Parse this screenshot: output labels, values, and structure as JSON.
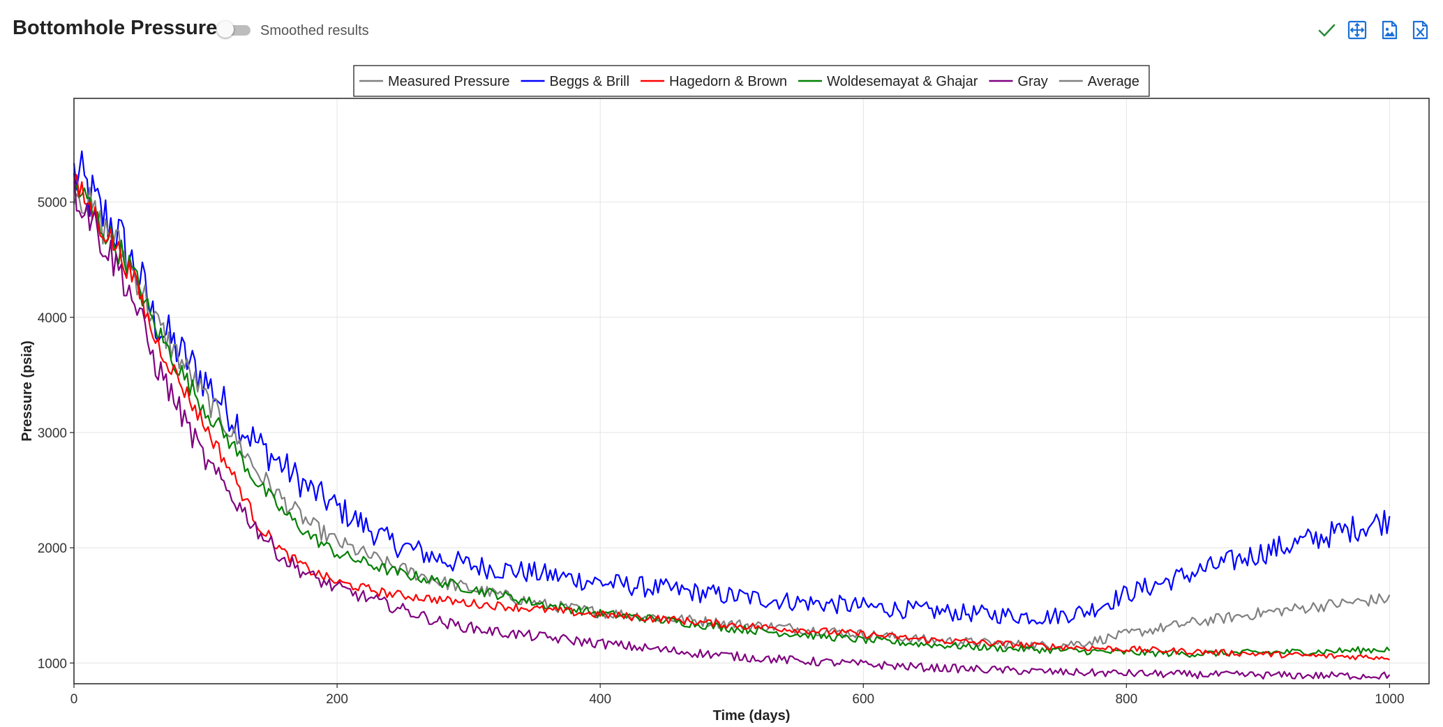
{
  "header": {
    "title": "Bottomhole Pressure",
    "toggle_label": "Smoothed results",
    "toggle_on": false,
    "icons": [
      {
        "name": "checkmark-icon",
        "color": "#2e8b3a"
      },
      {
        "name": "fit-view-icon",
        "color": "#1a6fd6"
      },
      {
        "name": "image-export-icon",
        "color": "#1a6fd6"
      },
      {
        "name": "excel-export-icon",
        "color": "#1a6fd6"
      }
    ]
  },
  "chart_data": {
    "type": "line",
    "xlabel": "Time (days)",
    "ylabel": "Pressure (psia)",
    "xlim": [
      0,
      1030
    ],
    "ylim": [
      820,
      5900
    ],
    "xticks": [
      0,
      200,
      400,
      600,
      800,
      1000
    ],
    "yticks": [
      1000,
      2000,
      3000,
      4000,
      5000
    ],
    "grid": true,
    "legend_position": "top-center",
    "series": [
      {
        "name": "Measured Pressure",
        "color": "#808080",
        "hidden": true,
        "points": []
      },
      {
        "name": "Beggs & Brill",
        "color": "#0000ff",
        "noise": 110,
        "points": [
          [
            0,
            5250
          ],
          [
            10,
            5100
          ],
          [
            20,
            4900
          ],
          [
            30,
            4800
          ],
          [
            40,
            4550
          ],
          [
            50,
            4350
          ],
          [
            60,
            4000
          ],
          [
            80,
            3700
          ],
          [
            100,
            3450
          ],
          [
            120,
            3150
          ],
          [
            140,
            2900
          ],
          [
            160,
            2700
          ],
          [
            180,
            2500
          ],
          [
            200,
            2350
          ],
          [
            240,
            2050
          ],
          [
            280,
            1900
          ],
          [
            300,
            1850
          ],
          [
            350,
            1780
          ],
          [
            400,
            1700
          ],
          [
            450,
            1640
          ],
          [
            500,
            1580
          ],
          [
            550,
            1530
          ],
          [
            600,
            1490
          ],
          [
            650,
            1450
          ],
          [
            700,
            1420
          ],
          [
            740,
            1400
          ],
          [
            770,
            1450
          ],
          [
            800,
            1600
          ],
          [
            850,
            1780
          ],
          [
            900,
            1950
          ],
          [
            950,
            2100
          ],
          [
            1000,
            2250
          ]
        ]
      },
      {
        "name": "Hagedorn & Brown",
        "color": "#ff0000",
        "noise": 50,
        "points": [
          [
            0,
            5150
          ],
          [
            10,
            5000
          ],
          [
            20,
            4800
          ],
          [
            30,
            4650
          ],
          [
            40,
            4450
          ],
          [
            50,
            4200
          ],
          [
            60,
            3850
          ],
          [
            80,
            3450
          ],
          [
            100,
            3050
          ],
          [
            120,
            2650
          ],
          [
            140,
            2200
          ],
          [
            160,
            1950
          ],
          [
            180,
            1800
          ],
          [
            200,
            1700
          ],
          [
            240,
            1600
          ],
          [
            300,
            1520
          ],
          [
            350,
            1470
          ],
          [
            400,
            1420
          ],
          [
            450,
            1380
          ],
          [
            500,
            1330
          ],
          [
            550,
            1290
          ],
          [
            600,
            1250
          ],
          [
            650,
            1200
          ],
          [
            700,
            1170
          ],
          [
            750,
            1140
          ],
          [
            800,
            1120
          ],
          [
            850,
            1100
          ],
          [
            900,
            1080
          ],
          [
            950,
            1060
          ],
          [
            1000,
            1050
          ]
        ]
      },
      {
        "name": "Woldesemayat & Ghajar",
        "color": "#008000",
        "noise": 55,
        "points": [
          [
            0,
            5150
          ],
          [
            10,
            5000
          ],
          [
            20,
            4800
          ],
          [
            30,
            4650
          ],
          [
            40,
            4500
          ],
          [
            50,
            4250
          ],
          [
            60,
            3950
          ],
          [
            80,
            3550
          ],
          [
            100,
            3200
          ],
          [
            120,
            2900
          ],
          [
            140,
            2550
          ],
          [
            160,
            2300
          ],
          [
            180,
            2100
          ],
          [
            200,
            1950
          ],
          [
            240,
            1800
          ],
          [
            280,
            1700
          ],
          [
            320,
            1600
          ],
          [
            360,
            1500
          ],
          [
            400,
            1430
          ],
          [
            450,
            1370
          ],
          [
            500,
            1300
          ],
          [
            550,
            1250
          ],
          [
            600,
            1200
          ],
          [
            650,
            1160
          ],
          [
            700,
            1130
          ],
          [
            750,
            1110
          ],
          [
            800,
            1090
          ],
          [
            850,
            1080
          ],
          [
            900,
            1090
          ],
          [
            950,
            1100
          ],
          [
            1000,
            1120
          ]
        ]
      },
      {
        "name": "Gray",
        "color": "#800080",
        "noise": 75,
        "points": [
          [
            0,
            5100
          ],
          [
            10,
            4950
          ],
          [
            20,
            4700
          ],
          [
            30,
            4500
          ],
          [
            40,
            4300
          ],
          [
            50,
            4000
          ],
          [
            60,
            3650
          ],
          [
            80,
            3200
          ],
          [
            100,
            2750
          ],
          [
            120,
            2450
          ],
          [
            140,
            2150
          ],
          [
            160,
            1900
          ],
          [
            180,
            1750
          ],
          [
            200,
            1650
          ],
          [
            240,
            1500
          ],
          [
            280,
            1350
          ],
          [
            320,
            1270
          ],
          [
            360,
            1220
          ],
          [
            400,
            1170
          ],
          [
            450,
            1110
          ],
          [
            500,
            1060
          ],
          [
            550,
            1020
          ],
          [
            600,
            990
          ],
          [
            650,
            960
          ],
          [
            700,
            940
          ],
          [
            750,
            920
          ],
          [
            800,
            910
          ],
          [
            850,
            900
          ],
          [
            900,
            895
          ],
          [
            950,
            890
          ],
          [
            1000,
            890
          ]
        ]
      },
      {
        "name": "Average",
        "color": "#808080",
        "noise": 70,
        "points": [
          [
            0,
            5150
          ],
          [
            10,
            5000
          ],
          [
            20,
            4800
          ],
          [
            30,
            4700
          ],
          [
            40,
            4500
          ],
          [
            50,
            4300
          ],
          [
            60,
            4000
          ],
          [
            80,
            3650
          ],
          [
            100,
            3300
          ],
          [
            120,
            3000
          ],
          [
            140,
            2650
          ],
          [
            160,
            2400
          ],
          [
            180,
            2200
          ],
          [
            200,
            2050
          ],
          [
            240,
            1850
          ],
          [
            280,
            1700
          ],
          [
            320,
            1600
          ],
          [
            360,
            1500
          ],
          [
            400,
            1440
          ],
          [
            450,
            1390
          ],
          [
            500,
            1340
          ],
          [
            550,
            1300
          ],
          [
            600,
            1250
          ],
          [
            650,
            1200
          ],
          [
            700,
            1170
          ],
          [
            740,
            1150
          ],
          [
            770,
            1180
          ],
          [
            800,
            1250
          ],
          [
            850,
            1350
          ],
          [
            900,
            1430
          ],
          [
            950,
            1500
          ],
          [
            1000,
            1560
          ]
        ]
      }
    ]
  }
}
